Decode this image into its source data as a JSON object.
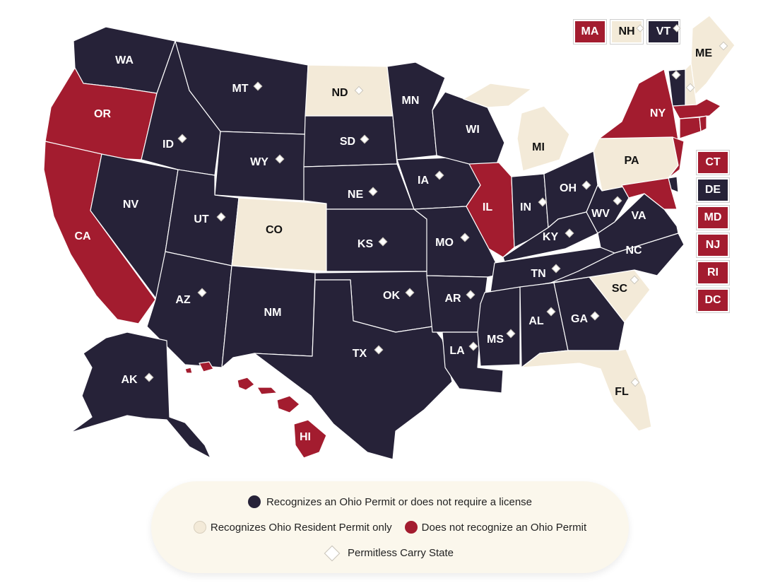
{
  "colors": {
    "recognizes": "#262238",
    "resident_only": "#f3ead8",
    "not_recognized": "#a31c2f",
    "legend_bg": "#fbf7ec"
  },
  "states": {
    "WA": {
      "label": "WA",
      "status": "recognizes",
      "permitless": false
    },
    "OR": {
      "label": "OR",
      "status": "not_recognized",
      "permitless": false
    },
    "CA": {
      "label": "CA",
      "status": "not_recognized",
      "permitless": false
    },
    "ID": {
      "label": "ID",
      "status": "recognizes",
      "permitless": true
    },
    "NV": {
      "label": "NV",
      "status": "recognizes",
      "permitless": false
    },
    "MT": {
      "label": "MT",
      "status": "recognizes",
      "permitless": true
    },
    "WY": {
      "label": "WY",
      "status": "recognizes",
      "permitless": true
    },
    "UT": {
      "label": "UT",
      "status": "recognizes",
      "permitless": true
    },
    "AZ": {
      "label": "AZ",
      "status": "recognizes",
      "permitless": true
    },
    "CO": {
      "label": "CO",
      "status": "resident_only",
      "permitless": false
    },
    "NM": {
      "label": "NM",
      "status": "recognizes",
      "permitless": false
    },
    "ND": {
      "label": "ND",
      "status": "resident_only",
      "permitless": true
    },
    "SD": {
      "label": "SD",
      "status": "recognizes",
      "permitless": true
    },
    "NE": {
      "label": "NE",
      "status": "recognizes",
      "permitless": true
    },
    "KS": {
      "label": "KS",
      "status": "recognizes",
      "permitless": true
    },
    "OK": {
      "label": "OK",
      "status": "recognizes",
      "permitless": true
    },
    "TX": {
      "label": "TX",
      "status": "recognizes",
      "permitless": true
    },
    "MN": {
      "label": "MN",
      "status": "recognizes",
      "permitless": false
    },
    "IA": {
      "label": "IA",
      "status": "recognizes",
      "permitless": true
    },
    "MO": {
      "label": "MO",
      "status": "recognizes",
      "permitless": true
    },
    "AR": {
      "label": "AR",
      "status": "recognizes",
      "permitless": true
    },
    "LA": {
      "label": "LA",
      "status": "recognizes",
      "permitless": true
    },
    "WI": {
      "label": "WI",
      "status": "recognizes",
      "permitless": false
    },
    "IL": {
      "label": "IL",
      "status": "not_recognized",
      "permitless": false
    },
    "MI": {
      "label": "MI",
      "status": "resident_only",
      "permitless": false
    },
    "IN": {
      "label": "IN",
      "status": "recognizes",
      "permitless": true
    },
    "OH": {
      "label": "OH",
      "status": "recognizes",
      "permitless": true
    },
    "KY": {
      "label": "KY",
      "status": "recognizes",
      "permitless": true
    },
    "TN": {
      "label": "TN",
      "status": "recognizes",
      "permitless": true
    },
    "MS": {
      "label": "MS",
      "status": "recognizes",
      "permitless": true
    },
    "AL": {
      "label": "AL",
      "status": "recognizes",
      "permitless": true
    },
    "GA": {
      "label": "GA",
      "status": "recognizes",
      "permitless": true
    },
    "FL": {
      "label": "FL",
      "status": "resident_only",
      "permitless": true
    },
    "SC": {
      "label": "SC",
      "status": "resident_only",
      "permitless": true
    },
    "NC": {
      "label": "NC",
      "status": "recognizes",
      "permitless": false
    },
    "VA": {
      "label": "VA",
      "status": "recognizes",
      "permitless": false
    },
    "WV": {
      "label": "WV",
      "status": "recognizes",
      "permitless": true
    },
    "PA": {
      "label": "PA",
      "status": "resident_only",
      "permitless": false
    },
    "NY": {
      "label": "NY",
      "status": "not_recognized",
      "permitless": false
    },
    "ME": {
      "label": "ME",
      "status": "resident_only",
      "permitless": true
    },
    "AK": {
      "label": "AK",
      "status": "recognizes",
      "permitless": true
    },
    "HI": {
      "label": "HI",
      "status": "not_recognized",
      "permitless": false
    }
  },
  "small_states": {
    "MA": {
      "label": "MA",
      "status": "not_recognized",
      "permitless": false
    },
    "NH": {
      "label": "NH",
      "status": "resident_only",
      "permitless": true
    },
    "VT": {
      "label": "VT",
      "status": "recognizes",
      "permitless": true
    },
    "CT": {
      "label": "CT",
      "status": "not_recognized",
      "permitless": false
    },
    "DE": {
      "label": "DE",
      "status": "recognizes",
      "permitless": false
    },
    "MD": {
      "label": "MD",
      "status": "not_recognized",
      "permitless": false
    },
    "NJ": {
      "label": "NJ",
      "status": "not_recognized",
      "permitless": false
    },
    "RI": {
      "label": "RI",
      "status": "not_recognized",
      "permitless": false
    },
    "DC": {
      "label": "DC",
      "status": "not_recognized",
      "permitless": false
    }
  },
  "legend": {
    "recognizes": "Recognizes an Ohio Permit or does not require a license",
    "resident_only": "Recognizes Ohio Resident Permit only",
    "not_recognized": "Does not recognize an Ohio Permit",
    "permitless": "Permitless Carry State"
  }
}
